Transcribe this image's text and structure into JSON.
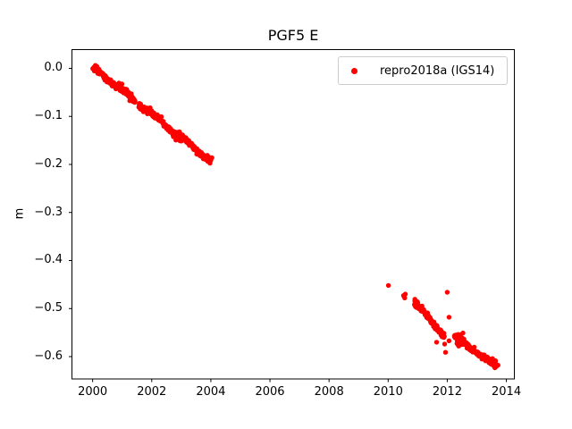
{
  "colors": {
    "background": "#ffffff",
    "series": "#ff0000",
    "text": "#000000",
    "axes": "#000000",
    "legend_border": "#cccccc"
  },
  "chart_data": {
    "type": "scatter",
    "title": "PGF5 E",
    "xlabel": "",
    "ylabel": "m",
    "xlim": [
      1999.3,
      2014.27
    ],
    "ylim": [
      -0.6465,
      0.039
    ],
    "xticks": [
      2000,
      2002,
      2004,
      2006,
      2008,
      2010,
      2012,
      2014
    ],
    "xtick_labels": [
      "2000",
      "2002",
      "2004",
      "2006",
      "2008",
      "2010",
      "2012",
      "2014"
    ],
    "yticks": [
      0.0,
      -0.1,
      -0.2,
      -0.3,
      -0.4,
      -0.5,
      -0.6
    ],
    "ytick_labels": [
      "0.0",
      "−0.1",
      "−0.2",
      "−0.3",
      "−0.4",
      "−0.5",
      "−0.6"
    ],
    "grid": false,
    "legend": {
      "label": "repro2018a (IGS14)",
      "location": "upper right"
    },
    "series": [
      {
        "name": "repro2018a (IGS14)",
        "color": "#ff0000",
        "marker": "point",
        "marker_radius_px": 2.7,
        "trend_segments": [
          {
            "t_start": 2000.04,
            "t_end": 2004.0,
            "m_start": 0.001,
            "m_end": -0.193,
            "points": 430,
            "noise_sd_m": 0.003,
            "wiggle_amp_m": 0.0035,
            "wiggle_period_yr": 1.0,
            "wiggle_phase_rad": 1.2,
            "gaps": [
              [
                2001.44,
                2001.56
              ]
            ]
          },
          {
            "t_start": 2010.89,
            "t_end": 2011.9,
            "m_start": -0.486,
            "m_end": -0.556,
            "points": 120,
            "noise_sd_m": 0.003,
            "wiggle_amp_m": 0.002,
            "wiggle_period_yr": 1.0,
            "wiggle_phase_rad": 0.0,
            "gaps": []
          },
          {
            "t_start": 2012.24,
            "t_end": 2013.67,
            "m_start": -0.556,
            "m_end": -0.621,
            "points": 170,
            "noise_sd_m": 0.003,
            "wiggle_amp_m": 0.002,
            "wiggle_period_yr": 1.0,
            "wiggle_phase_rad": 0.0,
            "gaps": []
          }
        ],
        "clusters": [
          {
            "t": 2000.1,
            "m": -0.003,
            "n": 14,
            "t_sd": 0.05,
            "m_sd": 0.0035
          },
          {
            "t": 2000.9,
            "m": -0.039,
            "n": 16,
            "t_sd": 0.07,
            "m_sd": 0.004
          },
          {
            "t": 2001.3,
            "m": -0.061,
            "n": 12,
            "t_sd": 0.05,
            "m_sd": 0.0035
          },
          {
            "t": 2002.95,
            "m": -0.146,
            "n": 12,
            "t_sd": 0.06,
            "m_sd": 0.0035
          },
          {
            "t": 2003.97,
            "m": -0.193,
            "n": 10,
            "t_sd": 0.04,
            "m_sd": 0.005
          },
          {
            "t": 2010.95,
            "m": -0.492,
            "n": 10,
            "t_sd": 0.04,
            "m_sd": 0.004
          },
          {
            "t": 2012.42,
            "m": -0.563,
            "n": 26,
            "t_sd": 0.09,
            "m_sd": 0.007
          },
          {
            "t": 2013.6,
            "m": -0.615,
            "n": 12,
            "t_sd": 0.05,
            "m_sd": 0.004
          }
        ],
        "outliers": [
          [
            2010.01,
            -0.452
          ],
          [
            2010.52,
            -0.473
          ],
          [
            2010.56,
            -0.478
          ],
          [
            2010.58,
            -0.47
          ],
          [
            2012.0,
            -0.466
          ],
          [
            2012.06,
            -0.518
          ],
          [
            2011.64,
            -0.57
          ],
          [
            2011.91,
            -0.574
          ],
          [
            2012.06,
            -0.567
          ],
          [
            2011.94,
            -0.591
          ]
        ]
      }
    ]
  }
}
